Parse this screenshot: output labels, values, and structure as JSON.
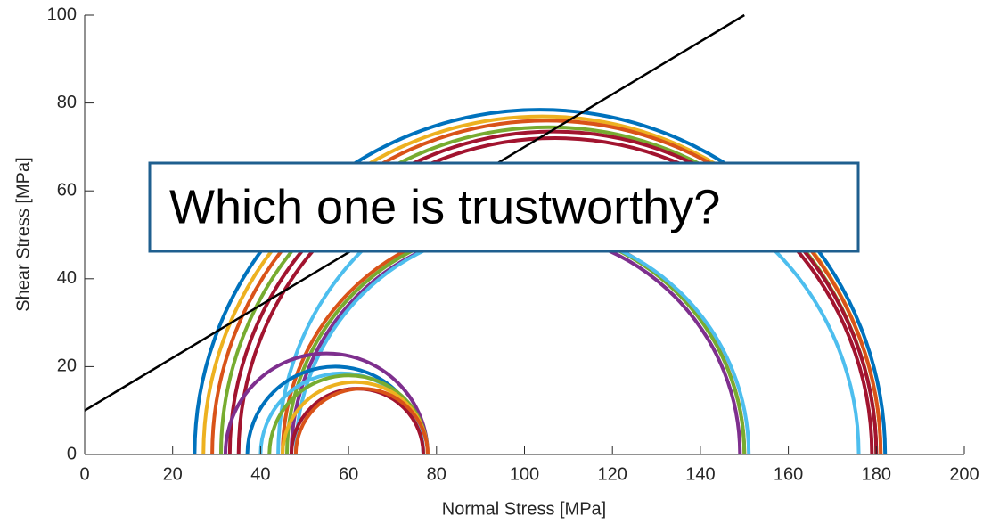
{
  "chart_data": {
    "type": "mohr",
    "xlabel": "Normal Stress [MPa]",
    "ylabel": "Shear Stress [MPa]",
    "xlim": [
      0,
      200
    ],
    "ylim": [
      0,
      100
    ],
    "xticks": [
      0,
      20,
      40,
      60,
      80,
      100,
      120,
      140,
      160,
      180,
      200
    ],
    "yticks": [
      0,
      20,
      40,
      60,
      80,
      100
    ],
    "circles": [
      {
        "sigma3": 25,
        "sigma1": 182,
        "color": "#0072BD"
      },
      {
        "sigma3": 27,
        "sigma1": 181,
        "color": "#EDB120"
      },
      {
        "sigma3": 29,
        "sigma1": 181,
        "color": "#D95319"
      },
      {
        "sigma3": 31,
        "sigma1": 180,
        "color": "#77AC30"
      },
      {
        "sigma3": 33,
        "sigma1": 180,
        "color": "#A2142F"
      },
      {
        "sigma3": 35,
        "sigma1": 179,
        "color": "#A2142F"
      },
      {
        "sigma3": 44,
        "sigma1": 176,
        "color": "#4DBEEE"
      },
      {
        "sigma3": 45,
        "sigma1": 150,
        "color": "#D95319"
      },
      {
        "sigma3": 46,
        "sigma1": 150,
        "color": "#77AC30"
      },
      {
        "sigma3": 47,
        "sigma1": 149,
        "color": "#7E2F8E"
      },
      {
        "sigma3": 48,
        "sigma1": 151,
        "color": "#4DBEEE"
      },
      {
        "sigma3": 32,
        "sigma1": 78,
        "color": "#7E2F8E"
      },
      {
        "sigma3": 37,
        "sigma1": 77,
        "color": "#0072BD"
      },
      {
        "sigma3": 40,
        "sigma1": 77,
        "color": "#4DBEEE"
      },
      {
        "sigma3": 42,
        "sigma1": 78,
        "color": "#77AC30"
      },
      {
        "sigma3": 45,
        "sigma1": 78,
        "color": "#EDB120"
      },
      {
        "sigma3": 47,
        "sigma1": 77,
        "color": "#A2142F"
      },
      {
        "sigma3": 48,
        "sigma1": 78,
        "color": "#D95319"
      }
    ],
    "envelope": {
      "x": [
        0,
        150
      ],
      "y": [
        10,
        100
      ],
      "color": "#000000"
    },
    "annotation": "Which one is trustworthy?"
  }
}
